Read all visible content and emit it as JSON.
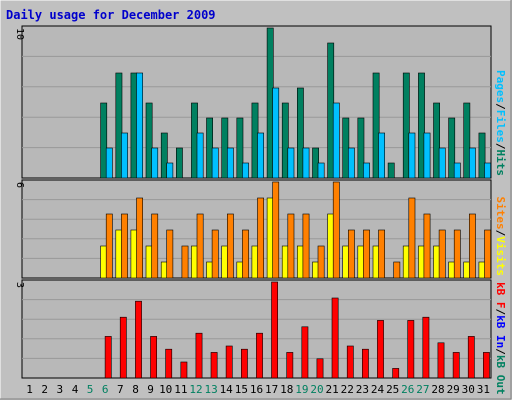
{
  "title": "Daily usage for December 2009",
  "colors": {
    "background": "#c0c0c0",
    "plot_background": "#b8b8b8",
    "border_light": "#ffffff",
    "border_dark": "#808080",
    "frame": "#000000",
    "title": "#0000cc",
    "hits": "#008060",
    "files": "#00c0ff",
    "pages": "#00c0ff",
    "visits": "#ffff00",
    "sites": "#ff8000",
    "kb_f": "#ff0000",
    "kb_in": "#0000ff",
    "kb_out": "#008060",
    "weekend_label": "#008060",
    "weekday_label": "#000000",
    "slash": "#000000"
  },
  "chart_data": [
    {
      "type": "bar",
      "panel": "top",
      "ymax_label": "10",
      "ylim": [
        0,
        10
      ],
      "legend": [
        "Pages",
        "/",
        "Files",
        "/",
        "Hits"
      ],
      "x": [
        1,
        2,
        3,
        4,
        5,
        6,
        7,
        8,
        9,
        10,
        11,
        12,
        13,
        14,
        15,
        16,
        17,
        18,
        19,
        20,
        21,
        22,
        23,
        24,
        25,
        26,
        27,
        28,
        29,
        30,
        31
      ],
      "series": [
        {
          "name": "Hits",
          "values": [
            0,
            0,
            0,
            0,
            0,
            5,
            7,
            7,
            5,
            3,
            2,
            5,
            4,
            4,
            4,
            5,
            10,
            5,
            6,
            2,
            9,
            4,
            4,
            7,
            1,
            7,
            7,
            5,
            4,
            5,
            3
          ]
        },
        {
          "name": "Files",
          "values": [
            0,
            0,
            0,
            0,
            0,
            2,
            3,
            7,
            2,
            1,
            0,
            3,
            2,
            2,
            1,
            3,
            6,
            2,
            2,
            1,
            5,
            2,
            1,
            3,
            0,
            3,
            3,
            2,
            1,
            2,
            1
          ]
        }
      ]
    },
    {
      "type": "bar",
      "panel": "middle",
      "ymax_label": "6",
      "ylim": [
        0,
        6
      ],
      "legend": [
        "Sites",
        "/",
        "Visits"
      ],
      "x": [
        1,
        2,
        3,
        4,
        5,
        6,
        7,
        8,
        9,
        10,
        11,
        12,
        13,
        14,
        15,
        16,
        17,
        18,
        19,
        20,
        21,
        22,
        23,
        24,
        25,
        26,
        27,
        28,
        29,
        30,
        31
      ],
      "series": [
        {
          "name": "Visits",
          "values": [
            0,
            0,
            0,
            0,
            0,
            2,
            3,
            3,
            2,
            1,
            0,
            2,
            1,
            2,
            1,
            2,
            5,
            2,
            2,
            1,
            4,
            2,
            2,
            2,
            0,
            2,
            2,
            2,
            1,
            1,
            1
          ]
        },
        {
          "name": "Sites",
          "values": [
            0,
            0,
            0,
            0,
            0,
            4,
            4,
            5,
            4,
            3,
            2,
            4,
            3,
            4,
            3,
            5,
            6,
            4,
            4,
            2,
            6,
            3,
            3,
            3,
            1,
            5,
            4,
            3,
            3,
            4,
            3
          ]
        }
      ]
    },
    {
      "type": "bar",
      "panel": "bottom",
      "ymax_label": "3",
      "ylim": [
        0,
        3
      ],
      "legend": [
        "kB F",
        "/",
        "kB In",
        "/",
        "kB Out"
      ],
      "x": [
        1,
        2,
        3,
        4,
        5,
        6,
        7,
        8,
        9,
        10,
        11,
        12,
        13,
        14,
        15,
        16,
        17,
        18,
        19,
        20,
        21,
        22,
        23,
        24,
        25,
        26,
        27,
        28,
        29,
        30,
        31
      ],
      "series": [
        {
          "name": "kB F",
          "values": [
            0,
            0,
            0,
            0,
            0,
            1.3,
            1.9,
            2.4,
            1.3,
            0.9,
            0.5,
            1.4,
            0.8,
            1.0,
            0.9,
            1.4,
            3.0,
            0.8,
            1.6,
            0.6,
            2.5,
            1.0,
            0.9,
            1.8,
            0.3,
            1.8,
            1.9,
            1.1,
            0.8,
            1.3,
            0.8
          ]
        }
      ]
    }
  ],
  "x_labels": [
    "1",
    "2",
    "3",
    "4",
    "5",
    "6",
    "7",
    "8",
    "9",
    "10",
    "11",
    "12",
    "13",
    "14",
    "15",
    "16",
    "17",
    "18",
    "19",
    "20",
    "21",
    "22",
    "23",
    "24",
    "25",
    "26",
    "27",
    "28",
    "29",
    "30",
    "31"
  ],
  "weekend_days": [
    5,
    6,
    12,
    13,
    19,
    20,
    26,
    27
  ]
}
